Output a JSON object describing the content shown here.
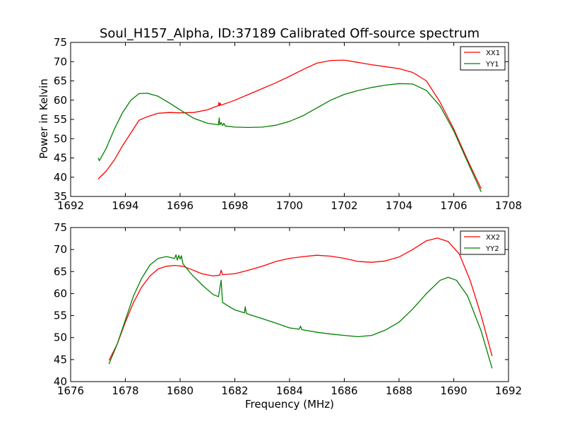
{
  "chart_data": [
    {
      "type": "line",
      "title": "Soul_H157_Alpha, ID:37189 Calibrated Off-source spectrum",
      "xlabel": "",
      "ylabel": "Power in Kelvin",
      "xlim": [
        1692,
        1708
      ],
      "ylim": [
        35,
        75
      ],
      "xticks": [
        "1692",
        "1694",
        "1696",
        "1698",
        "1700",
        "1702",
        "1704",
        "1706",
        "1708"
      ],
      "yticks": [
        "35",
        "40",
        "45",
        "50",
        "55",
        "60",
        "65",
        "70",
        "75"
      ],
      "legend_position": "top-right",
      "series": [
        {
          "name": "XX1",
          "color": "#ff0000",
          "points": [
            [
              1693.0,
              39.5
            ],
            [
              1693.3,
              41.6
            ],
            [
              1693.6,
              44.5
            ],
            [
              1693.9,
              48.2
            ],
            [
              1694.2,
              51.5
            ],
            [
              1694.5,
              54.8
            ],
            [
              1694.8,
              55.7
            ],
            [
              1695.2,
              56.6
            ],
            [
              1695.6,
              56.8
            ],
            [
              1696.0,
              56.7
            ],
            [
              1696.5,
              56.8
            ],
            [
              1697.0,
              57.5
            ],
            [
              1697.4,
              58.6
            ],
            [
              1697.42,
              59.4
            ],
            [
              1697.44,
              58.5
            ],
            [
              1697.47,
              59.2
            ],
            [
              1697.5,
              58.7
            ],
            [
              1698.0,
              60.0
            ],
            [
              1698.5,
              61.5
            ],
            [
              1699.0,
              63.0
            ],
            [
              1699.5,
              64.5
            ],
            [
              1700.0,
              66.2
            ],
            [
              1700.5,
              68.0
            ],
            [
              1701.0,
              69.6
            ],
            [
              1701.5,
              70.3
            ],
            [
              1702.0,
              70.4
            ],
            [
              1702.5,
              69.8
            ],
            [
              1703.0,
              69.2
            ],
            [
              1703.5,
              68.7
            ],
            [
              1704.0,
              68.2
            ],
            [
              1704.5,
              67.2
            ],
            [
              1705.0,
              65.0
            ],
            [
              1705.5,
              59.5
            ],
            [
              1706.0,
              52.5
            ],
            [
              1706.5,
              44.5
            ],
            [
              1707.0,
              37.0
            ]
          ]
        },
        {
          "name": "YY1",
          "color": "#008000",
          "points": [
            [
              1693.0,
              45.0
            ],
            [
              1693.05,
              44.3
            ],
            [
              1693.3,
              47.5
            ],
            [
              1693.6,
              52.5
            ],
            [
              1693.9,
              56.8
            ],
            [
              1694.2,
              60.0
            ],
            [
              1694.5,
              61.7
            ],
            [
              1694.8,
              61.8
            ],
            [
              1695.2,
              61.0
            ],
            [
              1695.6,
              59.3
            ],
            [
              1696.0,
              57.5
            ],
            [
              1696.5,
              55.3
            ],
            [
              1697.0,
              54.0
            ],
            [
              1697.4,
              53.6
            ],
            [
              1697.43,
              55.4
            ],
            [
              1697.45,
              53.6
            ],
            [
              1697.5,
              54.2
            ],
            [
              1697.55,
              53.4
            ],
            [
              1697.6,
              54.0
            ],
            [
              1697.65,
              53.3
            ],
            [
              1698.0,
              53.0
            ],
            [
              1698.5,
              52.9
            ],
            [
              1699.0,
              53.0
            ],
            [
              1699.5,
              53.5
            ],
            [
              1700.0,
              54.5
            ],
            [
              1700.5,
              56.0
            ],
            [
              1701.0,
              58.0
            ],
            [
              1701.5,
              60.0
            ],
            [
              1702.0,
              61.5
            ],
            [
              1702.5,
              62.5
            ],
            [
              1703.0,
              63.3
            ],
            [
              1703.5,
              63.9
            ],
            [
              1704.0,
              64.3
            ],
            [
              1704.5,
              64.2
            ],
            [
              1705.0,
              62.5
            ],
            [
              1705.5,
              58.5
            ],
            [
              1706.0,
              52.0
            ],
            [
              1706.5,
              44.0
            ],
            [
              1707.0,
              36.2
            ]
          ]
        }
      ]
    },
    {
      "type": "line",
      "title": "",
      "xlabel": "Frequency (MHz)",
      "ylabel": "",
      "xlim": [
        1676,
        1692
      ],
      "ylim": [
        40,
        75
      ],
      "xticks": [
        "1676",
        "1678",
        "1680",
        "1682",
        "1684",
        "1686",
        "1688",
        "1690",
        "1692"
      ],
      "yticks": [
        "40",
        "45",
        "50",
        "55",
        "60",
        "65",
        "70",
        "75"
      ],
      "legend_position": "top-right",
      "series": [
        {
          "name": "XX2",
          "color": "#ff0000",
          "points": [
            [
              1677.4,
              44.8
            ],
            [
              1677.7,
              48.5
            ],
            [
              1678.0,
              53.5
            ],
            [
              1678.3,
              58.0
            ],
            [
              1678.6,
              61.5
            ],
            [
              1678.9,
              64.0
            ],
            [
              1679.2,
              65.6
            ],
            [
              1679.5,
              66.2
            ],
            [
              1679.8,
              66.4
            ],
            [
              1680.1,
              66.2
            ],
            [
              1680.4,
              65.5
            ],
            [
              1680.8,
              64.5
            ],
            [
              1681.2,
              64.0
            ],
            [
              1681.45,
              64.2
            ],
            [
              1681.5,
              65.3
            ],
            [
              1681.55,
              64.3
            ],
            [
              1682.0,
              64.5
            ],
            [
              1682.5,
              65.3
            ],
            [
              1683.0,
              66.2
            ],
            [
              1683.5,
              67.3
            ],
            [
              1684.0,
              68.0
            ],
            [
              1684.5,
              68.4
            ],
            [
              1685.0,
              68.7
            ],
            [
              1685.5,
              68.5
            ],
            [
              1686.0,
              68.0
            ],
            [
              1686.5,
              67.3
            ],
            [
              1687.0,
              67.1
            ],
            [
              1687.5,
              67.4
            ],
            [
              1688.0,
              68.3
            ],
            [
              1688.5,
              70.0
            ],
            [
              1689.0,
              72.0
            ],
            [
              1689.4,
              72.6
            ],
            [
              1689.8,
              71.8
            ],
            [
              1690.2,
              69.0
            ],
            [
              1690.6,
              63.0
            ],
            [
              1691.0,
              55.0
            ],
            [
              1691.4,
              45.8
            ]
          ]
        },
        {
          "name": "YY2",
          "color": "#008000",
          "points": [
            [
              1677.4,
              44.0
            ],
            [
              1677.7,
              48.5
            ],
            [
              1678.0,
              54.0
            ],
            [
              1678.3,
              59.5
            ],
            [
              1678.6,
              63.5
            ],
            [
              1678.9,
              66.5
            ],
            [
              1679.2,
              68.0
            ],
            [
              1679.5,
              68.4
            ],
            [
              1679.8,
              68.0
            ],
            [
              1679.85,
              68.8
            ],
            [
              1679.9,
              67.6
            ],
            [
              1679.95,
              68.7
            ],
            [
              1680.0,
              67.8
            ],
            [
              1680.05,
              68.6
            ],
            [
              1680.1,
              66.8
            ],
            [
              1680.4,
              64.5
            ],
            [
              1680.8,
              62.0
            ],
            [
              1681.2,
              59.8
            ],
            [
              1681.4,
              59.3
            ],
            [
              1681.5,
              63.0
            ],
            [
              1681.55,
              58.0
            ],
            [
              1681.8,
              57.0
            ],
            [
              1682.0,
              56.3
            ],
            [
              1682.35,
              55.6
            ],
            [
              1682.38,
              57.0
            ],
            [
              1682.42,
              55.5
            ],
            [
              1682.5,
              55.3
            ],
            [
              1683.0,
              54.3
            ],
            [
              1683.5,
              53.3
            ],
            [
              1684.0,
              52.2
            ],
            [
              1684.35,
              51.9
            ],
            [
              1684.4,
              52.6
            ],
            [
              1684.45,
              51.8
            ],
            [
              1685.0,
              51.2
            ],
            [
              1685.5,
              50.8
            ],
            [
              1686.0,
              50.5
            ],
            [
              1686.5,
              50.2
            ],
            [
              1687.0,
              50.5
            ],
            [
              1687.5,
              51.7
            ],
            [
              1688.0,
              53.5
            ],
            [
              1688.5,
              56.5
            ],
            [
              1689.0,
              60.0
            ],
            [
              1689.5,
              63.0
            ],
            [
              1689.8,
              63.7
            ],
            [
              1690.1,
              63.0
            ],
            [
              1690.5,
              59.5
            ],
            [
              1691.0,
              51.5
            ],
            [
              1691.4,
              43.0
            ]
          ]
        }
      ]
    }
  ]
}
